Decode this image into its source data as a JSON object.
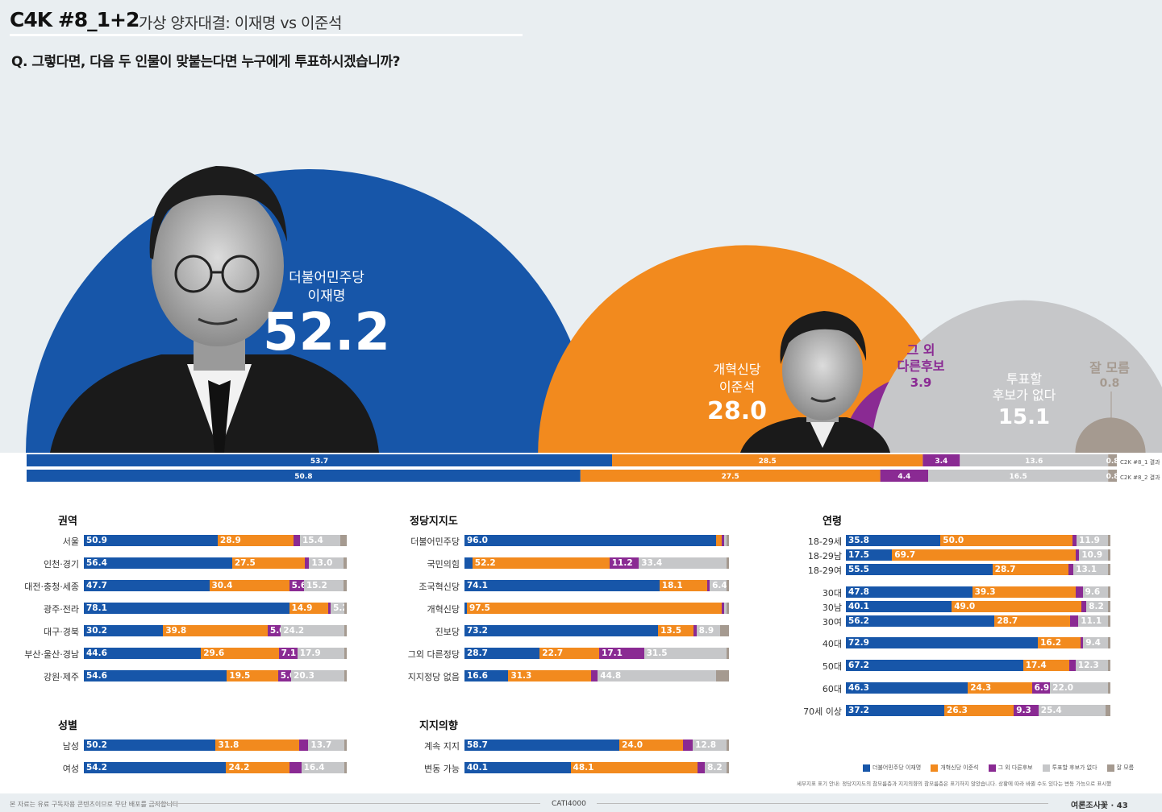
{
  "header": {
    "code": "C4K #8_1+2",
    "subtitle": "가상 양자대결: 이재명 vs 이준석",
    "question": "Q. 그렇다면, 다음 두 인물이 맞붙는다면 누구에게 투표하시겠습니까?"
  },
  "colors": {
    "blue": "#1756a9",
    "orange": "#f28a1e",
    "purple": "#8a2a93",
    "gray": "#c6c7c9",
    "brown": "#a59a90"
  },
  "chart_data": [
    {
      "type": "bar",
      "title": "가상 양자대결: 이재명 vs 이준석 (half-circle areas)",
      "categories": [
        "더불어민주당 이재명",
        "개혁신당 이준석",
        "그 외 다른후보",
        "투표할 후보가 없다",
        "잘 모름"
      ],
      "values": [
        52.2,
        28.0,
        3.9,
        15.1,
        0.8
      ],
      "labels": [
        {
          "party": "더불어민주당",
          "name": "이재명",
          "value": "52.2"
        },
        {
          "party": "개혁신당",
          "name": "이준석",
          "value": "28.0"
        },
        {
          "line1": "그 외",
          "line2": "다른후보",
          "value": "3.9"
        },
        {
          "line1": "투표할",
          "line2": "후보가 없다",
          "value": "15.1"
        },
        {
          "line1": "잘 모름",
          "value": "0.8"
        }
      ]
    },
    {
      "type": "bar",
      "title": "stacked comparison",
      "series": [
        {
          "name": "C2K #8_1 결과",
          "values": [
            53.7,
            28.5,
            3.4,
            13.6,
            0.8
          ]
        },
        {
          "name": "C2K #8_2 결과",
          "values": [
            50.8,
            27.5,
            4.4,
            16.5,
            0.8
          ]
        }
      ]
    }
  ],
  "sections": [
    {
      "title": "권역",
      "rows": [
        {
          "label": "서울",
          "values": [
            50.9,
            28.9,
            2.4,
            15.4,
            2.4
          ]
        },
        {
          "label": "인천·경기",
          "values": [
            56.4,
            27.5,
            1.8,
            13.0,
            1.3
          ]
        },
        {
          "label": "대전·충청·세종",
          "values": [
            47.7,
            30.4,
            5.6,
            15.2,
            1.1
          ]
        },
        {
          "label": "광주·전라",
          "values": [
            78.1,
            14.9,
            0.9,
            5.2,
            0.9
          ]
        },
        {
          "label": "대구·경북",
          "values": [
            30.2,
            39.8,
            5.0,
            24.2,
            0.8
          ]
        },
        {
          "label": "부산·울산·경남",
          "values": [
            44.6,
            29.6,
            7.1,
            17.9,
            0.8
          ]
        },
        {
          "label": "강원·제주",
          "values": [
            54.6,
            19.5,
            5.0,
            20.3,
            0.6
          ]
        }
      ]
    },
    {
      "title": "성별",
      "rows": [
        {
          "label": "남성",
          "values": [
            50.2,
            31.8,
            3.5,
            13.7,
            0.8
          ]
        },
        {
          "label": "여성",
          "values": [
            54.2,
            24.2,
            4.4,
            16.4,
            0.8
          ]
        }
      ]
    },
    {
      "title": "정당지지도",
      "rows": [
        {
          "label": "더불어민주당",
          "values": [
            96.0,
            2.0,
            0.5,
            1.0,
            0.5
          ]
        },
        {
          "label": "국민의힘",
          "values": [
            3.0,
            52.2,
            11.2,
            33.4,
            0.2
          ]
        },
        {
          "label": "조국혁신당",
          "values": [
            74.1,
            18.1,
            1.0,
            6.4,
            0.4
          ]
        },
        {
          "label": "개혁신당",
          "values": [
            0.5,
            97.5,
            0.5,
            1.0,
            0.5
          ]
        },
        {
          "label": "진보당",
          "values": [
            73.2,
            13.5,
            1.0,
            8.9,
            3.4
          ]
        },
        {
          "label": "그외 다른정당",
          "values": [
            28.7,
            22.7,
            17.1,
            31.5,
            0.0
          ]
        },
        {
          "label": "지지정당 없음",
          "values": [
            16.6,
            31.3,
            2.5,
            44.8,
            4.8
          ]
        }
      ]
    },
    {
      "title": "지지의향",
      "rows": [
        {
          "label": "계속 지지",
          "values": [
            58.7,
            24.0,
            3.8,
            12.8,
            0.7
          ]
        },
        {
          "label": "변동 가능",
          "values": [
            40.1,
            48.1,
            2.7,
            8.2,
            0.9
          ]
        }
      ]
    },
    {
      "title": "연령",
      "rows": [
        {
          "label": "18-29세",
          "values": [
            35.8,
            50.0,
            1.5,
            11.9,
            0.8
          ]
        },
        {
          "label": "18-29남",
          "values": [
            17.5,
            69.7,
            1.2,
            10.9,
            0.7
          ]
        },
        {
          "label": "18-29여",
          "values": [
            55.5,
            28.7,
            2.0,
            13.1,
            0.7
          ]
        },
        {
          "label": "30대",
          "values": [
            47.8,
            39.3,
            2.5,
            9.6,
            0.8
          ]
        },
        {
          "label": "30남",
          "values": [
            40.1,
            49.0,
            2.0,
            8.2,
            0.7
          ]
        },
        {
          "label": "30여",
          "values": [
            56.2,
            28.7,
            3.0,
            11.1,
            1.0
          ]
        },
        {
          "label": "40대",
          "values": [
            72.9,
            16.2,
            1.0,
            9.4,
            0.5
          ]
        },
        {
          "label": "50대",
          "values": [
            67.2,
            17.4,
            2.5,
            12.3,
            0.6
          ]
        },
        {
          "label": "60대",
          "values": [
            46.3,
            24.3,
            6.9,
            22.0,
            0.5
          ]
        },
        {
          "label": "70세 이상",
          "values": [
            37.2,
            26.3,
            9.3,
            25.4,
            1.8
          ]
        }
      ]
    }
  ],
  "legend": [
    "더불어민주당 이재명",
    "개혁신당 이준석",
    "그 외 다른후보",
    "투표할 후보가 없다",
    "잘 모름"
  ],
  "footnote": "세부지표 표기 안내: 정당지지도의 참모름층과 지지의향의 참모름층은 표기하지 않았습니다. 상황에 따라 바뀔 수도 있다는 변동 가능으로 표시했습니다.",
  "footer": {
    "left": "본 자료는 유료 구독자용 콘텐츠이므로 무단 배포를 금지합니다",
    "center": "CATI4000",
    "right": "여론조사꽃 · 43"
  }
}
